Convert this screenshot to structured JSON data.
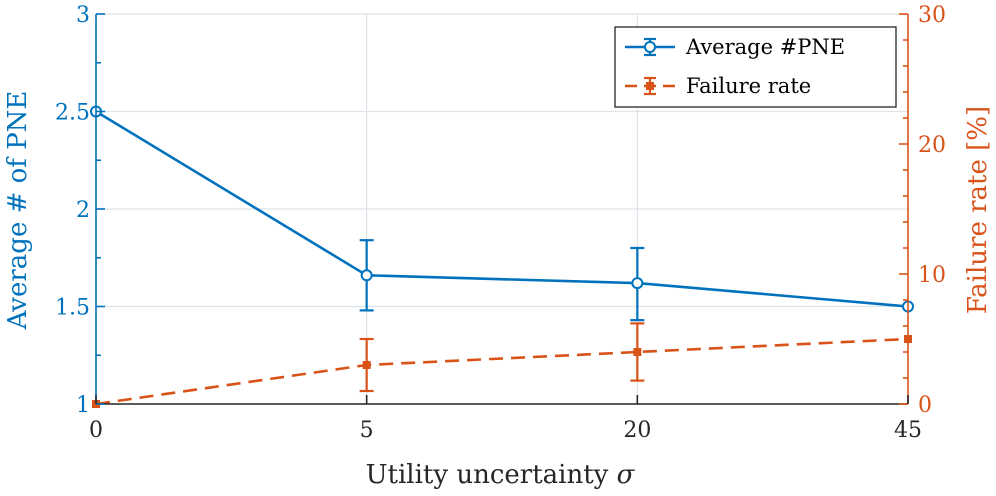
{
  "chart_data": {
    "type": "line",
    "categories": [
      "0",
      "5",
      "20",
      "45"
    ],
    "xlabel_text": "Utility uncertainty",
    "xlabel_symbol": "σ",
    "ylabel_left": "Average # of PNE",
    "ylabel_right": "Failure rate [%]",
    "ylim_left": [
      1,
      3
    ],
    "ylim_right": [
      0,
      30
    ],
    "yticks_left": [
      "1",
      "1.5",
      "2",
      "2.5",
      "3"
    ],
    "yticks_right": [
      "0",
      "10",
      "20",
      "30"
    ],
    "grid": true,
    "legend_position": "top-right",
    "series": [
      {
        "name": "Average #PNE",
        "axis": "left",
        "color": "#0072BD",
        "style": "solid",
        "marker": "circle",
        "values": [
          2.5,
          1.66,
          1.62,
          1.5
        ],
        "err_low": [
          null,
          1.48,
          1.43,
          null
        ],
        "err_high": [
          null,
          1.84,
          1.8,
          null
        ]
      },
      {
        "name": "Failure rate",
        "axis": "right",
        "color": "#D95319",
        "style": "dashed",
        "marker": "square",
        "values": [
          0,
          3,
          4,
          5
        ],
        "err_low": [
          null,
          1,
          1.8,
          null
        ],
        "err_high": [
          null,
          5,
          6.2,
          null
        ]
      }
    ]
  }
}
